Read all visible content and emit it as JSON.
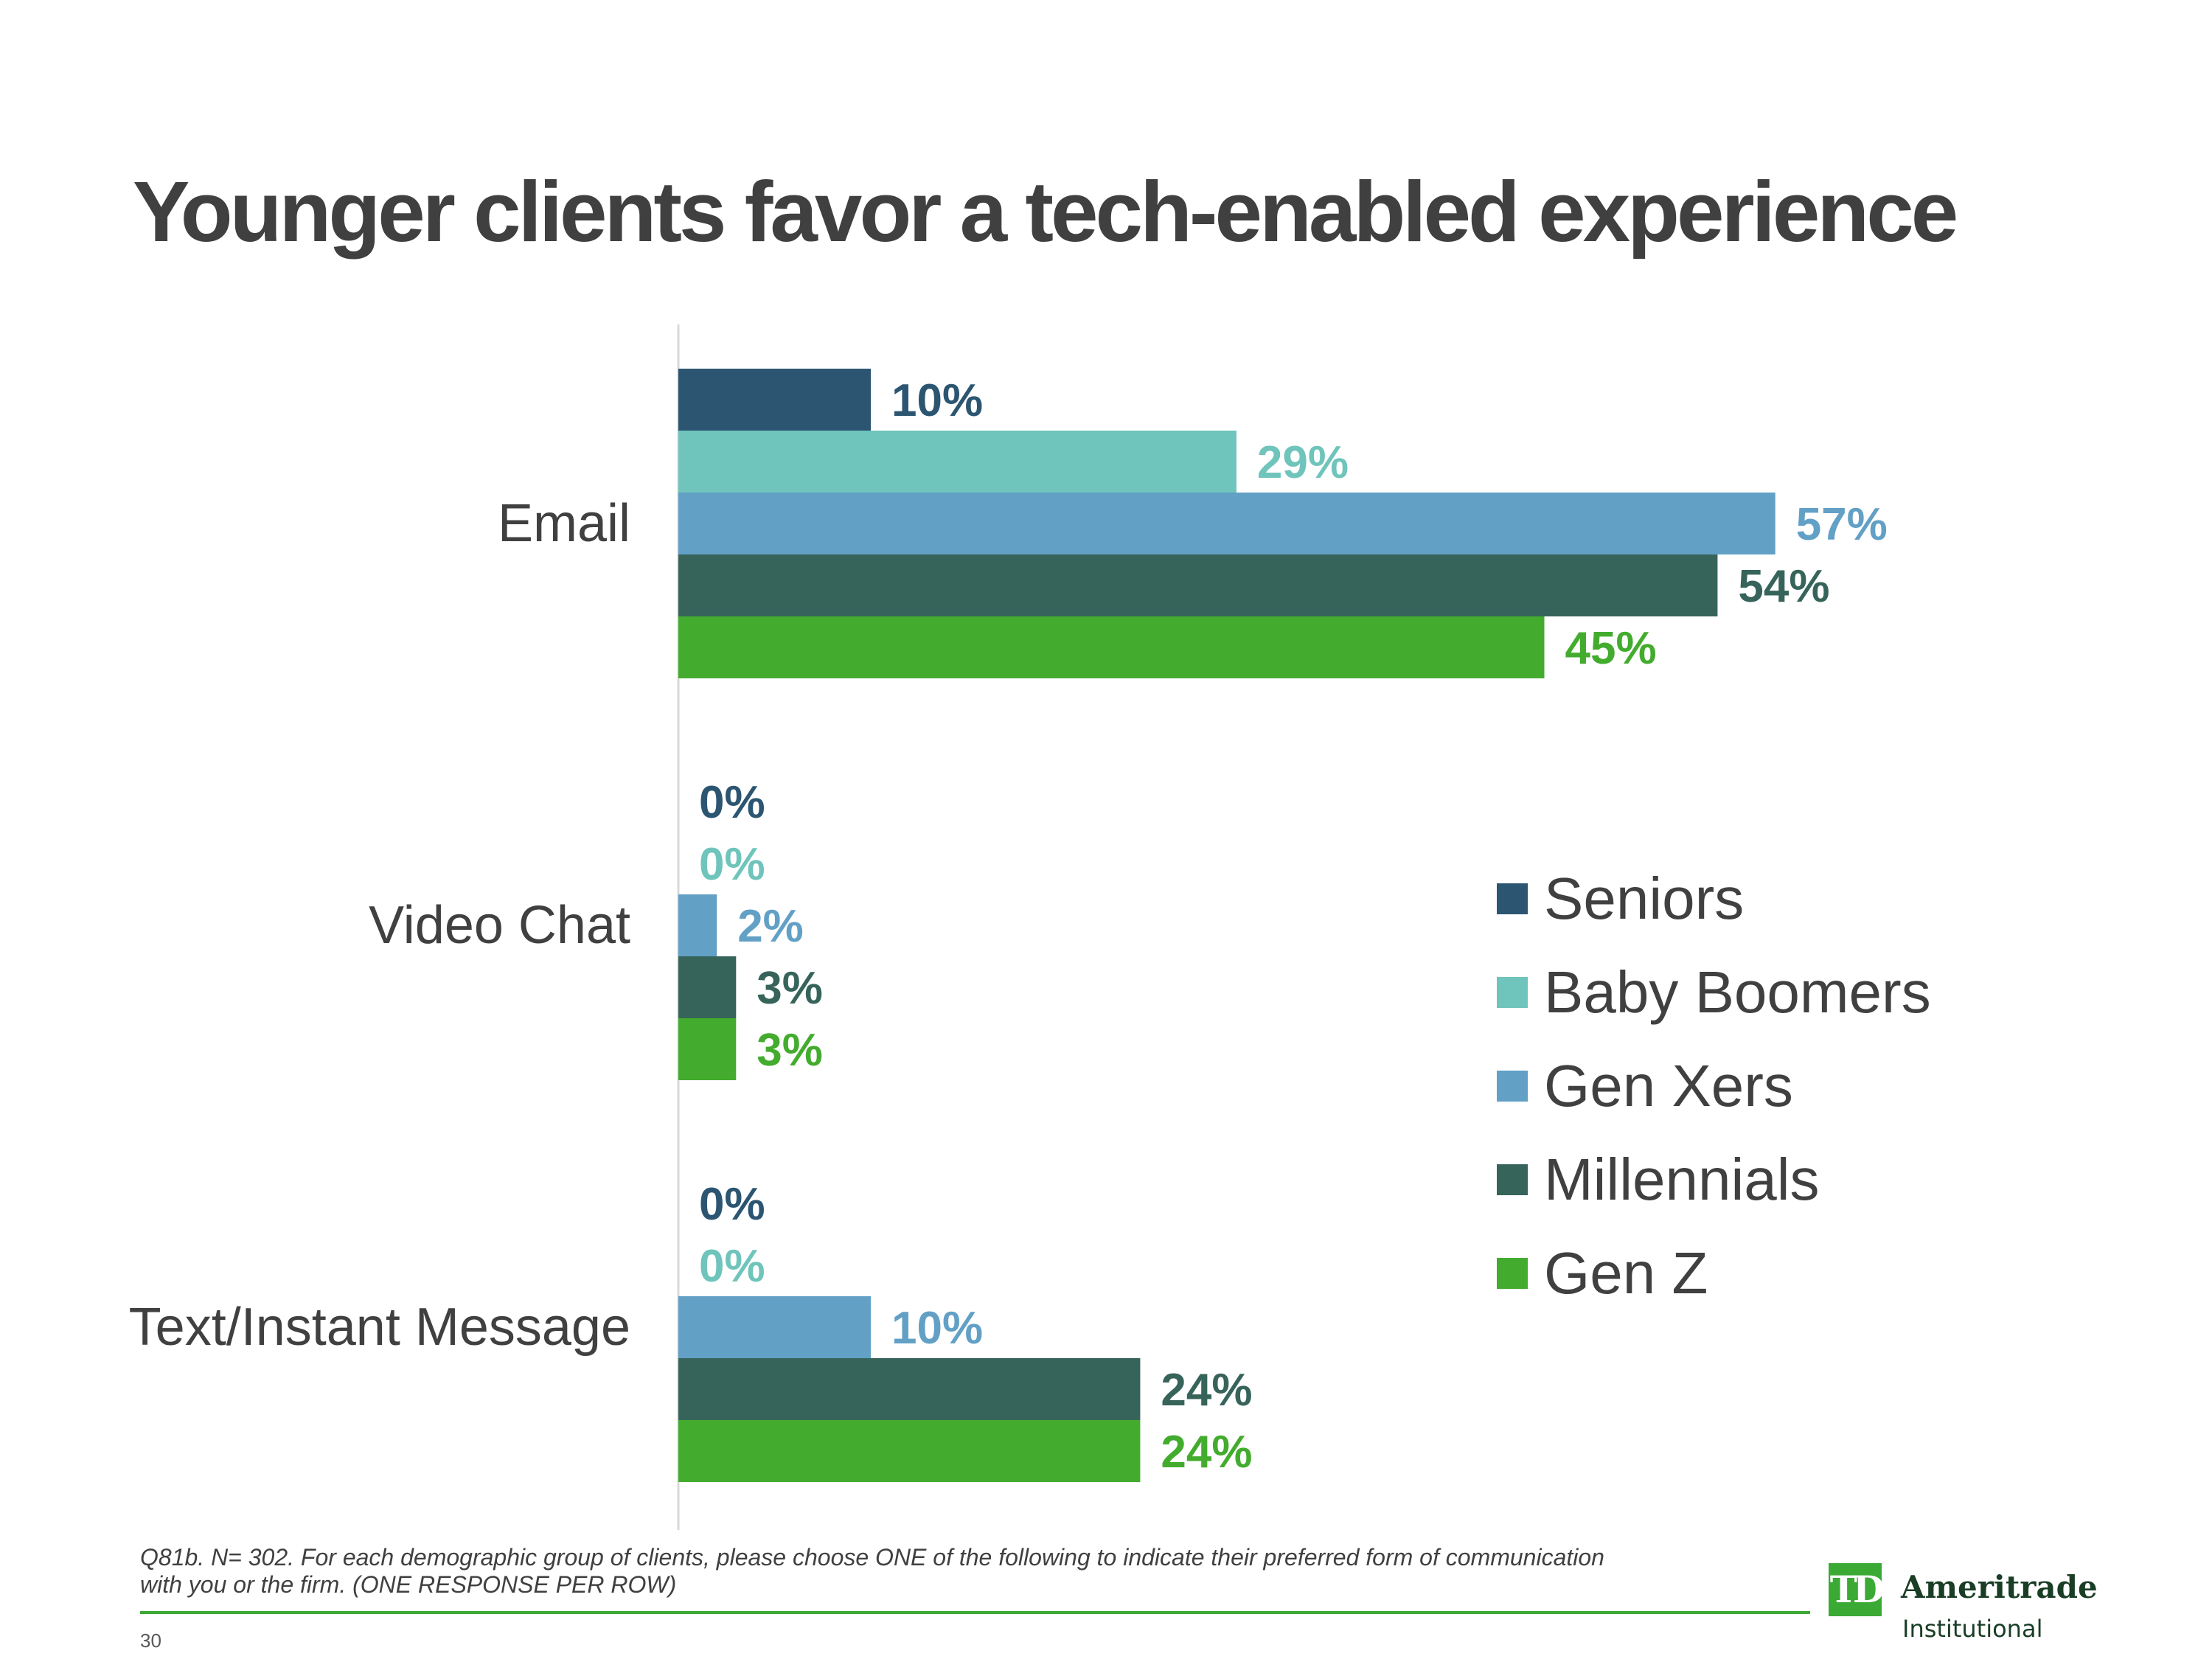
{
  "slide": {
    "title": "Younger clients favor a tech-enabled experience",
    "footnote": "Q81b. N= 302.  For each demographic group of clients, please choose ONE of the following to indicate their preferred form of communication with you or the firm. (ONE RESPONSE PER ROW)",
    "page_number": "30"
  },
  "logo": {
    "mark": "TD",
    "name": "Ameritrade",
    "subtitle": "Institutional",
    "color": "#3aaa35"
  },
  "chart_data": {
    "type": "bar",
    "orientation": "horizontal",
    "categories": [
      "Email",
      "Video Chat",
      "Text/Instant Message"
    ],
    "value_suffix": "%",
    "xlim": [
      0,
      60
    ],
    "grid": false,
    "legend_position": "right",
    "series": [
      {
        "name": "Seniors",
        "color": "#2c5572",
        "values": [
          10,
          0,
          0
        ]
      },
      {
        "name": "Baby Boomers",
        "color": "#6fc4bb",
        "values": [
          29,
          0,
          0
        ]
      },
      {
        "name": "Gen Xers",
        "color": "#62a0c6",
        "values": [
          57,
          2,
          10
        ]
      },
      {
        "name": "Millennials",
        "color": "#37645a",
        "values": [
          54,
          3,
          24
        ]
      },
      {
        "name": "Gen Z",
        "color": "#43ac2e",
        "values": [
          45,
          3,
          24
        ]
      }
    ]
  }
}
